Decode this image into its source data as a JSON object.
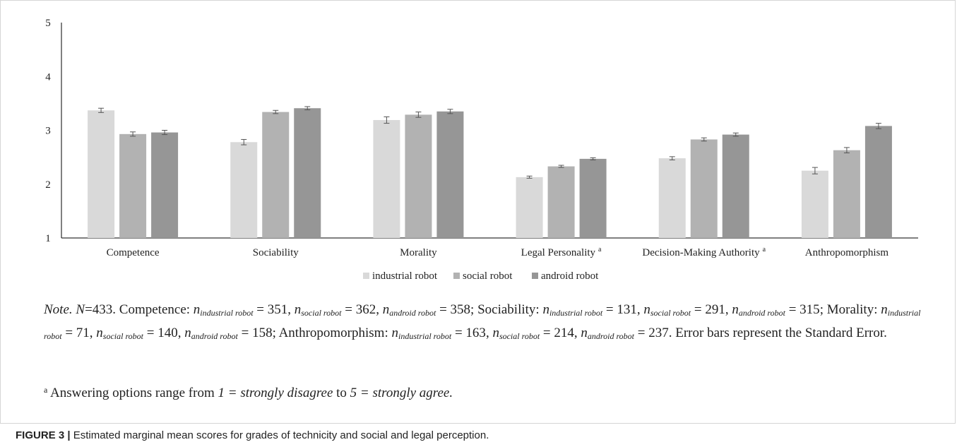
{
  "chart_data": {
    "type": "bar",
    "title": "",
    "xlabel": "",
    "ylabel": "",
    "ylim": [
      1,
      5
    ],
    "yticks": [
      1,
      2,
      3,
      4,
      5
    ],
    "categories": [
      "Competence",
      "Sociability",
      "Morality",
      "Legal Personality",
      "Decision-Making Authority",
      "Anthropomorphism"
    ],
    "category_superscripts": [
      "",
      "",
      "",
      "a",
      "a",
      ""
    ],
    "series": [
      {
        "name": "industrial robot",
        "color": "#d9d9d9",
        "values": [
          3.37,
          2.78,
          3.19,
          2.13,
          2.48,
          2.25
        ],
        "errors": [
          0.04,
          0.05,
          0.06,
          0.02,
          0.03,
          0.06
        ]
      },
      {
        "name": "social robot",
        "color": "#b2b2b2",
        "values": [
          2.93,
          3.34,
          3.29,
          2.33,
          2.83,
          2.63
        ],
        "errors": [
          0.04,
          0.03,
          0.05,
          0.02,
          0.03,
          0.05
        ]
      },
      {
        "name": "android robot",
        "color": "#969696",
        "values": [
          2.96,
          3.41,
          3.35,
          2.47,
          2.92,
          3.08
        ],
        "errors": [
          0.04,
          0.03,
          0.04,
          0.02,
          0.03,
          0.05
        ]
      }
    ],
    "legend_position": "bottom-center",
    "grid": false,
    "error_bars": "standard error"
  },
  "note": {
    "label": "Note.",
    "n_symbol": "N",
    "n_total": "=433.",
    "groups": [
      {
        "name": "Competence",
        "n": [
          "351",
          "362",
          "358"
        ]
      },
      {
        "name": "Sociability",
        "n": [
          "131",
          "291",
          "315"
        ]
      },
      {
        "name": "Morality",
        "n": [
          "71",
          "140",
          "158"
        ]
      },
      {
        "name": "Anthropomorphism",
        "n": [
          "163",
          "214",
          "237"
        ]
      }
    ],
    "n_prefix": "n",
    "subscripts": [
      "industrial robot",
      "social robot",
      "android robot"
    ],
    "error_text": "Error bars represent the Standard Error."
  },
  "footnote": {
    "marker": "a",
    "text_1": "Answering options range from",
    "option_low": "1 = strongly disagree",
    "text_2": "to",
    "option_high": "5 = strongly agree."
  },
  "caption": {
    "label": "FIGURE 3 |",
    "text": "Estimated marginal mean scores for grades of technicity and social and legal perception."
  }
}
